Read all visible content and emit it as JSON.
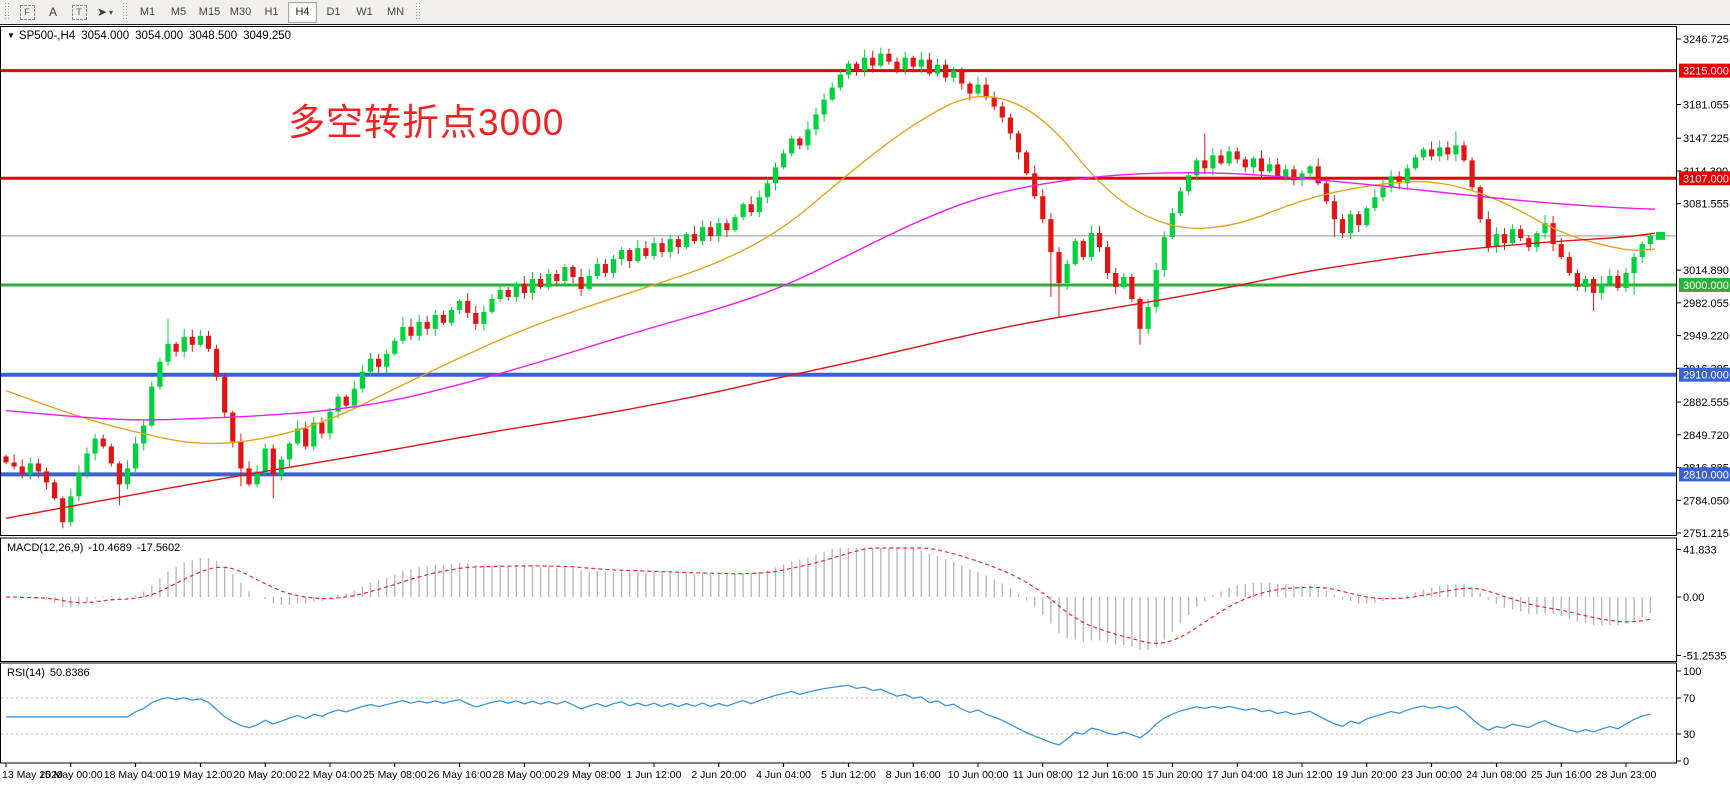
{
  "toolbar": {
    "icons": [
      {
        "name": "chart-window-icon",
        "label": "F",
        "style": "frame"
      },
      {
        "name": "text-label-icon",
        "label": "A",
        "style": "plain"
      },
      {
        "name": "text-box-icon",
        "label": "T",
        "style": "frame"
      },
      {
        "name": "pointer-tool-icon",
        "label": "➤",
        "style": "pointer",
        "caret": "▾"
      }
    ],
    "timeframes": [
      "M1",
      "M5",
      "M15",
      "M30",
      "H1",
      "H4",
      "D1",
      "W1",
      "MN"
    ],
    "active_timeframe": "H4"
  },
  "header": {
    "dropdown_glyph": "▼",
    "symbol_period": "SP500-,H4",
    "open": "3054.000",
    "high": "3054.000",
    "low": "3048.500",
    "close": "3049.250"
  },
  "annotation": {
    "text": "多空转折点3000",
    "color": "#f32121"
  },
  "macd_panel": {
    "name": "MACD(12,26,9)",
    "main_value": "-10.4689",
    "signal_value": "-17.5602",
    "axis": [
      {
        "v": 41.833,
        "t": "41.833"
      },
      {
        "v": 0,
        "t": "0.00"
      },
      {
        "v": -51.2535,
        "t": "-51.2535"
      }
    ]
  },
  "rsi_panel": {
    "name": "RSI(14)",
    "value": "50.8386",
    "levels": [
      {
        "v": 100,
        "t": "100",
        "dash": false
      },
      {
        "v": 70,
        "t": "70",
        "dash": true
      },
      {
        "v": 30,
        "t": "30",
        "dash": true
      },
      {
        "v": 0,
        "t": "0",
        "dash": false
      }
    ]
  },
  "chart_data": {
    "type": "candlestick",
    "symbol": "SP500-",
    "period": "H4",
    "price_axis": {
      "top": 3246.725,
      "bottom": 2751.215,
      "ticks": [
        {
          "v": 3246.725,
          "t": "3246.725"
        },
        {
          "v": 3181.055,
          "t": "3181.055"
        },
        {
          "v": 3147.225,
          "t": "3147.225"
        },
        {
          "v": 3114.39,
          "t": "3114.390"
        },
        {
          "v": 3081.555,
          "t": "3081.555"
        },
        {
          "v": 3014.89,
          "t": "3014.890"
        },
        {
          "v": 2982.055,
          "t": "2982.055"
        },
        {
          "v": 2949.22,
          "t": "2949.220"
        },
        {
          "v": 2916.385,
          "t": "2916.385"
        },
        {
          "v": 2882.555,
          "t": "2882.555"
        },
        {
          "v": 2849.72,
          "t": "2849.720"
        },
        {
          "v": 2816.885,
          "t": "2816.885"
        },
        {
          "v": 2784.05,
          "t": "2784.050"
        },
        {
          "v": 2751.215,
          "t": "2751.215"
        }
      ]
    },
    "horizontal_lines": [
      {
        "price": 3215.0,
        "label": "3215.000",
        "color": "#e60000",
        "lw": 3
      },
      {
        "price": 3107.0,
        "label": "3107.000",
        "color": "#e60000",
        "lw": 3
      },
      {
        "price": 3000.0,
        "label": "3000.000",
        "color": "#2fae3a",
        "lw": 3
      },
      {
        "price": 2910.0,
        "label": "2910.000",
        "color": "#3a62cc",
        "lw": 4
      },
      {
        "price": 2810.0,
        "label": "2810.000",
        "color": "#3a62cc",
        "lw": 4
      }
    ],
    "current_price": {
      "value": 3049.25,
      "label": "3049.250",
      "line_color": "#8f979e",
      "box_color": "#000000",
      "marker_color": "#00d23b"
    },
    "candle_colors": {
      "up": "#00d23b",
      "down": "#e21414"
    },
    "first_open": 2828,
    "closes": [
      2822,
      2818,
      2810,
      2821,
      2813,
      2802,
      2786,
      2762,
      2788,
      2812,
      2831,
      2846,
      2838,
      2821,
      2800,
      2816,
      2841,
      2859,
      2898,
      2923,
      2941,
      2933,
      2948,
      2940,
      2949,
      2936,
      2908,
      2872,
      2843,
      2816,
      2800,
      2813,
      2836,
      2810,
      2825,
      2841,
      2856,
      2838,
      2862,
      2851,
      2873,
      2888,
      2879,
      2896,
      2913,
      2926,
      2918,
      2931,
      2944,
      2958,
      2949,
      2963,
      2956,
      2970,
      2962,
      2975,
      2984,
      2972,
      2961,
      2973,
      2986,
      2995,
      2988,
      3001,
      2992,
      3006,
      2998,
      3011,
      3004,
      3018,
      3008,
      2996,
      3009,
      3021,
      3012,
      3026,
      3035,
      3024,
      3037,
      3029,
      3042,
      3033,
      3046,
      3038,
      3051,
      3044,
      3058,
      3049,
      3062,
      3055,
      3068,
      3081,
      3073,
      3088,
      3102,
      3118,
      3132,
      3147,
      3140,
      3156,
      3171,
      3186,
      3198,
      3211,
      3222,
      3215,
      3228,
      3220,
      3232,
      3224,
      3216,
      3228,
      3219,
      3226,
      3212,
      3221,
      3208,
      3215,
      3202,
      3192,
      3201,
      3188,
      3179,
      3168,
      3152,
      3133,
      3112,
      3089,
      3066,
      3033,
      3002,
      3021,
      3044,
      3028,
      3052,
      3038,
      3012,
      2998,
      3008,
      2986,
      2956,
      2978,
      3015,
      3048,
      3072,
      3094,
      3110,
      3125,
      3117,
      3130,
      3122,
      3134,
      3126,
      3118,
      3127,
      3114,
      3121,
      3108,
      3116,
      3105,
      3112,
      3119,
      3102,
      3084,
      3066,
      3052,
      3071,
      3060,
      3077,
      3088,
      3098,
      3109,
      3102,
      3117,
      3128,
      3136,
      3129,
      3138,
      3131,
      3140,
      3125,
      3098,
      3066,
      3038,
      3051,
      3042,
      3056,
      3047,
      3038,
      3052,
      3062,
      3041,
      3028,
      3012,
      2998,
      3006,
      2992,
      3001,
      3009,
      2997,
      3012,
      3028,
      3041,
      3049.25
    ],
    "wick_highs": {
      "20": 2966,
      "49": 2968,
      "108": 3238,
      "111": 3234,
      "148": 3152,
      "179": 3154
    },
    "wick_lows": {
      "7": 2756,
      "14": 2779,
      "29": 2798,
      "33": 2786,
      "129": 2988,
      "130": 2968,
      "140": 2940,
      "164": 3048,
      "196": 2974,
      "201": 2990
    },
    "moving_averages": [
      {
        "name": "ma-fast-orange",
        "color": "#e8a31c",
        "sample_step": 8,
        "values": [
          2894,
          2870,
          2852,
          2839,
          2845,
          2864,
          2896,
          2927,
          2956,
          2979,
          3000,
          3022,
          3056,
          3112,
          3162,
          3196,
          3172,
          3090,
          3055,
          3059,
          3086,
          3100,
          3106,
          3088,
          3051,
          3034,
          3036
        ]
      },
      {
        "name": "ma-mid-magenta",
        "color": "#f21cf2",
        "sample_step": 8,
        "values": [
          2874,
          2868,
          2864,
          2866,
          2869,
          2874,
          2884,
          2900,
          2918,
          2938,
          2958,
          2976,
          2998,
          3030,
          3062,
          3088,
          3102,
          3110,
          3113,
          3112,
          3107,
          3101,
          3094,
          3087,
          3081,
          3077,
          3076
        ]
      },
      {
        "name": "ma-slow-red",
        "color": "#e01414",
        "sample_step": 8,
        "values": [
          2766,
          2778,
          2790,
          2802,
          2813,
          2824,
          2835,
          2847,
          2858,
          2868,
          2880,
          2893,
          2908,
          2922,
          2937,
          2952,
          2965,
          2976,
          2987,
          2999,
          3013,
          3023,
          3032,
          3039,
          3044,
          3048,
          3052
        ]
      }
    ],
    "macd": {
      "params": "12,26,9",
      "main_current": -10.4689,
      "signal_current": -17.5602,
      "axis_max": 41.833,
      "axis_min": -51.2535,
      "histogram_color": "#b9b9b9",
      "signal_color": "#e03030"
    },
    "rsi": {
      "period": 14,
      "current": 50.8386,
      "line_color": "#3a96dd",
      "level_high": 70,
      "level_low": 30
    },
    "bars_per_label": 8,
    "time_labels": [
      "13 May 2020",
      "15 May 00:00",
      "18 May 04:00",
      "19 May 12:00",
      "20 May 20:00",
      "22 May 04:00",
      "25 May 08:00",
      "26 May 16:00",
      "28 May 00:00",
      "29 May 08:00",
      "1 Jun 12:00",
      "2 Jun 20:00",
      "4 Jun 04:00",
      "5 Jun 12:00",
      "8 Jun 16:00",
      "10 Jun 00:00",
      "11 Jun 08:00",
      "12 Jun 16:00",
      "15 Jun 20:00",
      "17 Jun 04:00",
      "18 Jun 12:00",
      "19 Jun 20:00",
      "23 Jun 00:00",
      "24 Jun 08:00",
      "25 Jun 16:00",
      "28 Jun 23:00"
    ]
  }
}
